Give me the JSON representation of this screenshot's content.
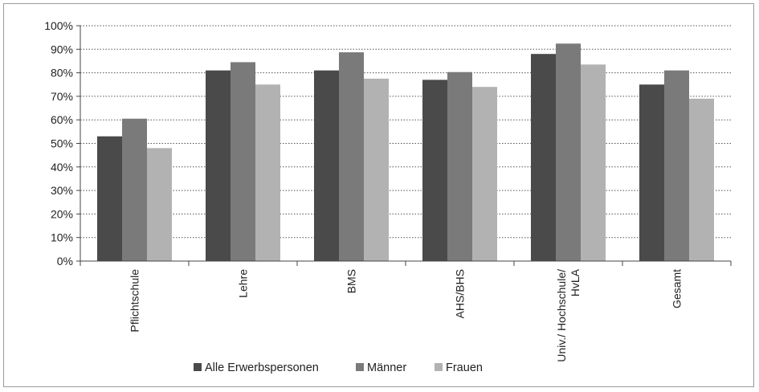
{
  "chart_data": {
    "type": "bar",
    "categories": [
      [
        "Pflichtschule"
      ],
      [
        "Lehre"
      ],
      [
        "BMS"
      ],
      [
        "AHS/BHS"
      ],
      [
        "Univ./ Hochschule/",
        "HvLA"
      ],
      [
        "Gesamt"
      ]
    ],
    "series": [
      {
        "name": "Alle Erwerbspersonen",
        "values": [
          53,
          81,
          81,
          77,
          88,
          75
        ],
        "color": "#4a4a4a"
      },
      {
        "name": "Männer",
        "values": [
          60.5,
          84.5,
          88.7,
          80.3,
          92.4,
          81
        ],
        "color": "#7a7a7a"
      },
      {
        "name": "Frauen",
        "values": [
          48,
          75,
          77.5,
          74,
          83.5,
          69
        ],
        "color": "#b2b2b2"
      }
    ],
    "yticks": [
      "0%",
      "10%",
      "20%",
      "30%",
      "40%",
      "50%",
      "60%",
      "70%",
      "80%",
      "90%",
      "100%"
    ],
    "ylim": [
      0,
      100
    ],
    "grid": "horizontal dotted",
    "legend": "bottom"
  }
}
